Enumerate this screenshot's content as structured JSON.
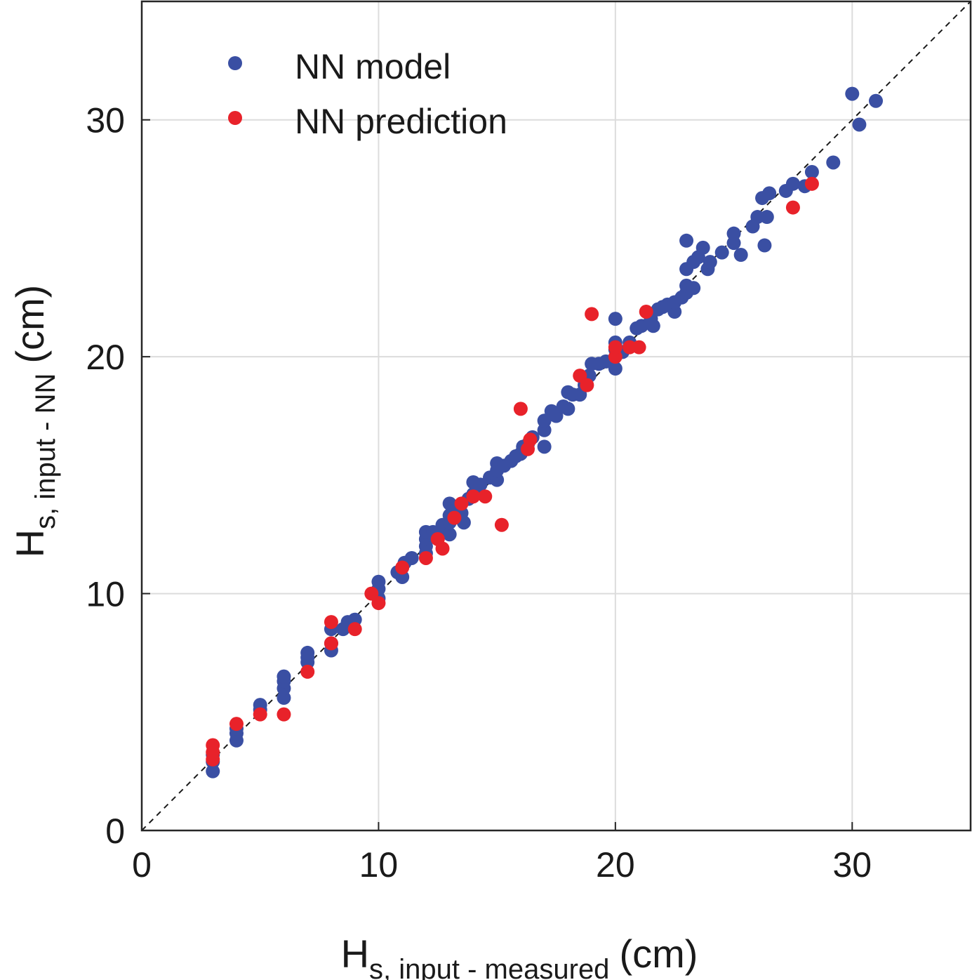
{
  "chart_data": {
    "type": "scatter",
    "title": "",
    "xlabel": {
      "main": "H",
      "sub": "s, input - measured",
      "unit": "(cm)"
    },
    "ylabel": {
      "main": "H",
      "sub": "s, input - NN",
      "unit": "(cm)"
    },
    "xlim": [
      0,
      35
    ],
    "ylim": [
      0,
      35
    ],
    "xticks": [
      0,
      10,
      20,
      30
    ],
    "yticks": [
      0,
      10,
      20,
      30
    ],
    "xtick_labels": [
      "0",
      "10",
      "20",
      "30"
    ],
    "ytick_labels": [
      "0",
      "10",
      "20",
      "30"
    ],
    "grid": true,
    "legend_position": "top-left",
    "reference_line": {
      "name": "1:1 line",
      "style": "dashed",
      "from": [
        0,
        0
      ],
      "to": [
        35,
        35
      ]
    },
    "series": [
      {
        "name": "NN model",
        "color": "#3a4fa3",
        "points": [
          [
            3,
            2.5
          ],
          [
            3,
            2.9
          ],
          [
            3,
            3.2
          ],
          [
            4,
            3.8
          ],
          [
            4,
            4.1
          ],
          [
            4,
            4.3
          ],
          [
            5,
            5.1
          ],
          [
            5,
            5.3
          ],
          [
            6,
            5.6
          ],
          [
            6,
            6.0
          ],
          [
            6,
            6.3
          ],
          [
            6,
            6.5
          ],
          [
            7,
            7.1
          ],
          [
            7,
            7.3
          ],
          [
            7,
            7.5
          ],
          [
            8,
            7.6
          ],
          [
            8,
            7.9
          ],
          [
            8,
            8.5
          ],
          [
            8.5,
            8.5
          ],
          [
            8.7,
            8.8
          ],
          [
            9,
            8.9
          ],
          [
            10,
            9.8
          ],
          [
            10,
            10.2
          ],
          [
            10,
            10.5
          ],
          [
            10.8,
            10.9
          ],
          [
            11,
            10.7
          ],
          [
            11.1,
            11.3
          ],
          [
            11.4,
            11.5
          ],
          [
            12,
            11.7
          ],
          [
            12,
            12.0
          ],
          [
            12,
            12.3
          ],
          [
            12,
            12.6
          ],
          [
            12.3,
            12.6
          ],
          [
            12.5,
            12.6
          ],
          [
            12.7,
            12.9
          ],
          [
            13,
            12.5
          ],
          [
            13,
            13.0
          ],
          [
            13,
            13.3
          ],
          [
            13,
            13.8
          ],
          [
            13.2,
            13.5
          ],
          [
            13.5,
            13.4
          ],
          [
            13.6,
            13.0
          ],
          [
            13.8,
            14.0
          ],
          [
            14,
            14.2
          ],
          [
            14,
            14.7
          ],
          [
            14.3,
            14.6
          ],
          [
            14.7,
            14.9
          ],
          [
            15,
            14.8
          ],
          [
            15,
            15.2
          ],
          [
            15,
            15.5
          ],
          [
            15.3,
            15.4
          ],
          [
            15.6,
            15.6
          ],
          [
            15.8,
            15.8
          ],
          [
            16,
            15.9
          ],
          [
            16.1,
            16.2
          ],
          [
            16.3,
            16.3
          ],
          [
            16.5,
            16.6
          ],
          [
            17,
            16.2
          ],
          [
            17,
            16.9
          ],
          [
            17,
            17.3
          ],
          [
            17.3,
            17.7
          ],
          [
            17.5,
            17.5
          ],
          [
            17.8,
            17.9
          ],
          [
            18,
            17.8
          ],
          [
            18,
            18.5
          ],
          [
            18.2,
            18.4
          ],
          [
            18.5,
            18.4
          ],
          [
            18.7,
            18.8
          ],
          [
            18.9,
            19.2
          ],
          [
            19,
            19.7
          ],
          [
            19.3,
            19.7
          ],
          [
            19.6,
            19.8
          ],
          [
            20,
            19.5
          ],
          [
            20,
            20.3
          ],
          [
            20,
            20.6
          ],
          [
            20,
            21.6
          ],
          [
            20.3,
            20.2
          ],
          [
            20.6,
            20.6
          ],
          [
            20.9,
            21.2
          ],
          [
            21.1,
            21.3
          ],
          [
            21.5,
            21.6
          ],
          [
            21.6,
            21.3
          ],
          [
            21.8,
            22.0
          ],
          [
            22,
            22.1
          ],
          [
            22.2,
            22.2
          ],
          [
            22.5,
            21.9
          ],
          [
            22.5,
            22.3
          ],
          [
            22.8,
            22.5
          ],
          [
            23,
            22.7
          ],
          [
            23,
            23.0
          ],
          [
            23,
            23.7
          ],
          [
            23,
            24.9
          ],
          [
            23.3,
            22.9
          ],
          [
            23.3,
            24.0
          ],
          [
            23.5,
            24.2
          ],
          [
            23.7,
            24.6
          ],
          [
            23.9,
            23.7
          ],
          [
            24,
            24.0
          ],
          [
            24.5,
            24.4
          ],
          [
            25,
            24.8
          ],
          [
            25,
            25.2
          ],
          [
            25.3,
            24.3
          ],
          [
            25.8,
            25.5
          ],
          [
            26,
            25.9
          ],
          [
            26.2,
            26.7
          ],
          [
            26.3,
            24.7
          ],
          [
            26.4,
            25.9
          ],
          [
            26.5,
            26.9
          ],
          [
            27.2,
            27.0
          ],
          [
            27.5,
            27.3
          ],
          [
            28,
            27.2
          ],
          [
            28.3,
            27.8
          ],
          [
            29.2,
            28.2
          ],
          [
            30,
            31.1
          ],
          [
            30.3,
            29.8
          ],
          [
            31,
            30.8
          ]
        ]
      },
      {
        "name": "NN prediction",
        "color": "#e8222a",
        "points": [
          [
            3,
            3.0
          ],
          [
            3,
            3.3
          ],
          [
            3,
            3.6
          ],
          [
            4,
            4.5
          ],
          [
            5,
            4.9
          ],
          [
            6,
            4.9
          ],
          [
            7,
            6.7
          ],
          [
            8,
            7.9
          ],
          [
            8,
            8.8
          ],
          [
            9,
            8.5
          ],
          [
            9.7,
            10.0
          ],
          [
            10,
            9.6
          ],
          [
            11,
            11.1
          ],
          [
            12,
            11.5
          ],
          [
            12.5,
            12.3
          ],
          [
            12.7,
            11.9
          ],
          [
            13.2,
            13.2
          ],
          [
            13.5,
            13.8
          ],
          [
            14,
            14.1
          ],
          [
            14.5,
            14.1
          ],
          [
            15.2,
            12.9
          ],
          [
            16,
            17.8
          ],
          [
            16.3,
            16.1
          ],
          [
            16.4,
            16.5
          ],
          [
            18.5,
            19.2
          ],
          [
            18.8,
            18.8
          ],
          [
            19,
            21.8
          ],
          [
            20,
            20.0
          ],
          [
            20,
            20.4
          ],
          [
            20.6,
            20.4
          ],
          [
            21,
            20.4
          ],
          [
            21.3,
            21.9
          ],
          [
            27.5,
            26.3
          ],
          [
            28.3,
            27.3
          ]
        ]
      }
    ]
  }
}
